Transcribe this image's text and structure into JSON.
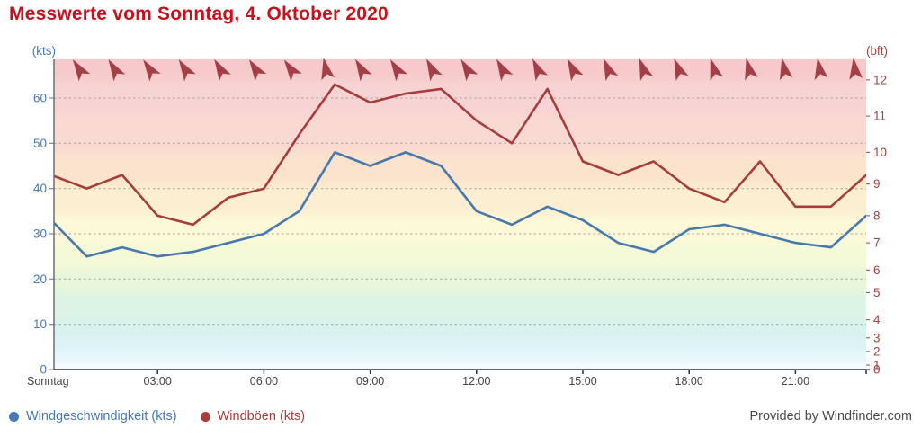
{
  "title": "Messwerte vom Sonntag, 4. Oktober 2020",
  "colors": {
    "title": "#c9111d",
    "wind_speed": "#4878ad",
    "wind_gusts": "#a63d3d",
    "arrow": "#a33f46",
    "kts_axis": "#4a79b5",
    "bft_axis": "#a04343",
    "time_labels": "#444444",
    "grid": "#999999",
    "x_axis_line": "#333333",
    "y_axis_line": "#6b6f74"
  },
  "chart_data": {
    "type": "line",
    "title": "Messwerte vom Sonntag, 4. Oktober 2020",
    "x_unit": "hour of day (hourly measurements 00:00-23:00)",
    "x_tick_labels": [
      {
        "label": "Sonntag",
        "hour": 0
      },
      {
        "label": "03:00",
        "hour": 3
      },
      {
        "label": "06:00",
        "hour": 6
      },
      {
        "label": "09:00",
        "hour": 9
      },
      {
        "label": "12:00",
        "hour": 12
      },
      {
        "label": "15:00",
        "hour": 15
      },
      {
        "label": "18:00",
        "hour": 18
      },
      {
        "label": "21:00",
        "hour": 21
      }
    ],
    "series": [
      {
        "name": "Windgeschwindigkeit (kts)",
        "color": "#4878ad",
        "values": [
          33,
          25,
          27,
          25,
          26,
          28,
          30,
          35,
          48,
          45,
          48,
          45,
          35,
          32,
          36,
          33,
          28,
          26,
          31,
          32,
          30,
          28,
          27,
          34
        ]
      },
      {
        "name": "Windböen (kts)",
        "color": "#a63d3d",
        "values": [
          43,
          40,
          43,
          34,
          32,
          38,
          40,
          52,
          63,
          59,
          61,
          62,
          55,
          50,
          62,
          46,
          43,
          46,
          40,
          37,
          46,
          36,
          36,
          43
        ]
      }
    ],
    "left_axis": {
      "label": "(kts)",
      "color": "#4a79b5",
      "ticks": [
        0,
        10,
        20,
        30,
        40,
        50,
        60
      ],
      "range": [
        0,
        68.5
      ]
    },
    "right_axis": {
      "label": "(bft)",
      "color": "#a04343",
      "ticks": [
        {
          "bft": 12,
          "kts": 64
        },
        {
          "bft": 11,
          "kts": 56
        },
        {
          "bft": 10,
          "kts": 48
        },
        {
          "bft": 9,
          "kts": 41
        },
        {
          "bft": 8,
          "kts": 34
        },
        {
          "bft": 7,
          "kts": 28
        },
        {
          "bft": 6,
          "kts": 22
        },
        {
          "bft": 5,
          "kts": 17
        },
        {
          "bft": 4,
          "kts": 11
        },
        {
          "bft": 3,
          "kts": 7
        },
        {
          "bft": 2,
          "kts": 4
        },
        {
          "bft": 1,
          "kts": 1
        },
        {
          "bft": 0,
          "kts": 0
        }
      ]
    },
    "beaufort_bands": [
      {
        "bft": 0,
        "from": 0,
        "to": 1,
        "color": "#f4fbfe"
      },
      {
        "bft": 1,
        "from": 1,
        "to": 4,
        "color": "#e9f7fc"
      },
      {
        "bft": 2,
        "from": 4,
        "to": 7,
        "color": "#dcf3f6"
      },
      {
        "bft": 3,
        "from": 7,
        "to": 11,
        "color": "#d8f2ef"
      },
      {
        "bft": 4,
        "from": 11,
        "to": 17,
        "color": "#dcf4e6"
      },
      {
        "bft": 5,
        "from": 17,
        "to": 22,
        "color": "#e8f6da"
      },
      {
        "bft": 6,
        "from": 22,
        "to": 28,
        "color": "#f4f9d8"
      },
      {
        "bft": 7,
        "from": 28,
        "to": 34,
        "color": "#fdf9d8"
      },
      {
        "bft": 8,
        "from": 34,
        "to": 41,
        "color": "#fceed0"
      },
      {
        "bft": 9,
        "from": 41,
        "to": 48,
        "color": "#fbe3cd"
      },
      {
        "bft": 10,
        "from": 48,
        "to": 56,
        "color": "#f9d9d2"
      },
      {
        "bft": 11,
        "from": 56,
        "to": 64,
        "color": "#f8d3d3"
      },
      {
        "bft": 12,
        "from": 64,
        "to": 69,
        "color": "#f6caca"
      }
    ],
    "wind_direction_arrow_rotations_deg": [
      -33,
      -31,
      -34,
      -32,
      -30,
      -33,
      -35,
      -12,
      -30,
      -32,
      -27,
      -31,
      -29,
      -25,
      -27,
      -23,
      -20,
      -22,
      -17,
      -14,
      -12,
      -10,
      -7
    ],
    "grid": true,
    "legend_position": "bottom-left"
  },
  "legend": {
    "items": [
      {
        "label": "Windgeschwindigkeit (kts)",
        "color": "#4679b3"
      },
      {
        "label": "Windböen (kts)",
        "color": "#ab3c3c"
      }
    ]
  },
  "footer": {
    "provided_by": "Provided by Windfinder.com"
  }
}
